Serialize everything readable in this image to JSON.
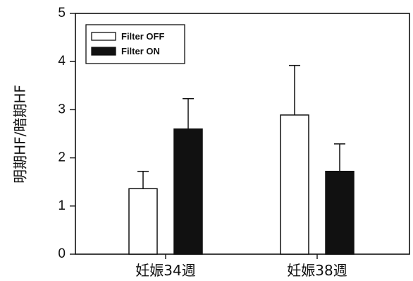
{
  "chart_data": {
    "type": "bar",
    "categories": [
      "妊娠34週",
      "妊娠38週"
    ],
    "series": [
      {
        "name": "Filter OFF",
        "values": [
          1.36,
          2.89
        ],
        "errors": [
          0.36,
          1.03
        ],
        "fill": "#ffffff"
      },
      {
        "name": "Filter ON",
        "values": [
          2.6,
          1.72
        ],
        "errors": [
          0.63,
          0.57
        ],
        "fill": "#111111"
      }
    ],
    "ylabel": "明期HF/暗期HF",
    "xlabel": "",
    "ylim": [
      0,
      5
    ],
    "yticks": [
      "0",
      "1",
      "2",
      "3",
      "4",
      "5"
    ],
    "grid": false,
    "legend": "top-left"
  }
}
